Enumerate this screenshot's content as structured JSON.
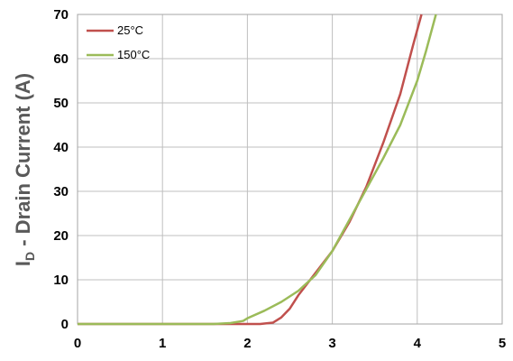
{
  "chart_data": {
    "type": "line",
    "title": "",
    "xlabel": "",
    "ylabel_main": "I",
    "ylabel_sub": "D",
    "ylabel_rest": " - Drain Current (A)",
    "xlim": [
      0,
      5
    ],
    "ylim": [
      0,
      70
    ],
    "x_ticks": [
      "0",
      "1",
      "2",
      "3",
      "4",
      "5"
    ],
    "y_ticks": [
      "0",
      "10",
      "20",
      "30",
      "40",
      "50",
      "60",
      "70"
    ],
    "grid": true,
    "legend_position": "top-left",
    "series": [
      {
        "name": "25°C",
        "color": "#c0504d",
        "points": [
          [
            0,
            0
          ],
          [
            1.0,
            0
          ],
          [
            2.0,
            0
          ],
          [
            2.15,
            0
          ],
          [
            2.3,
            0.3
          ],
          [
            2.4,
            1.5
          ],
          [
            2.5,
            3.5
          ],
          [
            2.6,
            6.5
          ],
          [
            2.7,
            9.0
          ],
          [
            2.8,
            11.5
          ],
          [
            3.0,
            16.5
          ],
          [
            3.2,
            23.0
          ],
          [
            3.4,
            31.0
          ],
          [
            3.6,
            41.0
          ],
          [
            3.8,
            52.0
          ],
          [
            3.95,
            63.0
          ],
          [
            4.05,
            70.0
          ]
        ]
      },
      {
        "name": "150°C",
        "color": "#9bbb59",
        "points": [
          [
            0,
            0
          ],
          [
            1.0,
            0
          ],
          [
            1.6,
            0
          ],
          [
            1.8,
            0.2
          ],
          [
            1.95,
            0.7
          ],
          [
            2.0,
            1.3
          ],
          [
            2.2,
            3.0
          ],
          [
            2.4,
            5.0
          ],
          [
            2.6,
            7.5
          ],
          [
            2.8,
            11.0
          ],
          [
            3.0,
            16.5
          ],
          [
            3.2,
            23.5
          ],
          [
            3.4,
            30.5
          ],
          [
            3.6,
            37.5
          ],
          [
            3.8,
            45.0
          ],
          [
            4.0,
            55.0
          ],
          [
            4.1,
            61.5
          ],
          [
            4.22,
            70.0
          ]
        ]
      }
    ]
  }
}
